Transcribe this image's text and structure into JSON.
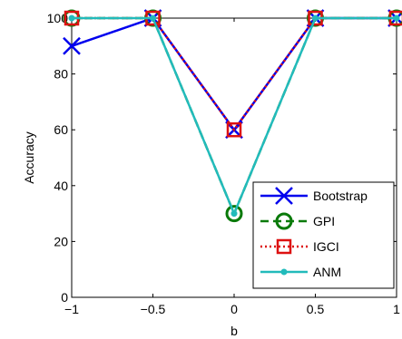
{
  "chart_data": {
    "type": "line",
    "title": "",
    "xlabel": "b",
    "ylabel": "Accuracy",
    "xlim": [
      -1,
      1
    ],
    "ylim": [
      0,
      100
    ],
    "xticks": [
      -1,
      -0.5,
      0,
      0.5,
      1
    ],
    "yticks": [
      0,
      20,
      40,
      60,
      80,
      100
    ],
    "xtick_labels": [
      "−1",
      "−0.5",
      "0",
      "0.5",
      "1"
    ],
    "ytick_labels": [
      "0",
      "20",
      "40",
      "60",
      "80",
      "100"
    ],
    "x": [
      -1,
      -0.5,
      0,
      0.5,
      1
    ],
    "grid": false,
    "legend_position": "bottom-right",
    "series": [
      {
        "name": "Bootstrap",
        "values": [
          90,
          100,
          60,
          100,
          100
        ],
        "color": "#0000ee",
        "linestyle": "solid",
        "marker": "x"
      },
      {
        "name": "GPI",
        "values": [
          100,
          100,
          30,
          100,
          100
        ],
        "color": "#0a7a0a",
        "linestyle": "dashed",
        "marker": "circle"
      },
      {
        "name": "IGCI",
        "values": [
          100,
          100,
          60,
          100,
          100
        ],
        "color": "#dd1111",
        "linestyle": "dotted",
        "marker": "square"
      },
      {
        "name": "ANM",
        "values": [
          100,
          100,
          30,
          100,
          100
        ],
        "color": "#22bbbb",
        "linestyle": "solid",
        "marker": "dot"
      }
    ]
  }
}
